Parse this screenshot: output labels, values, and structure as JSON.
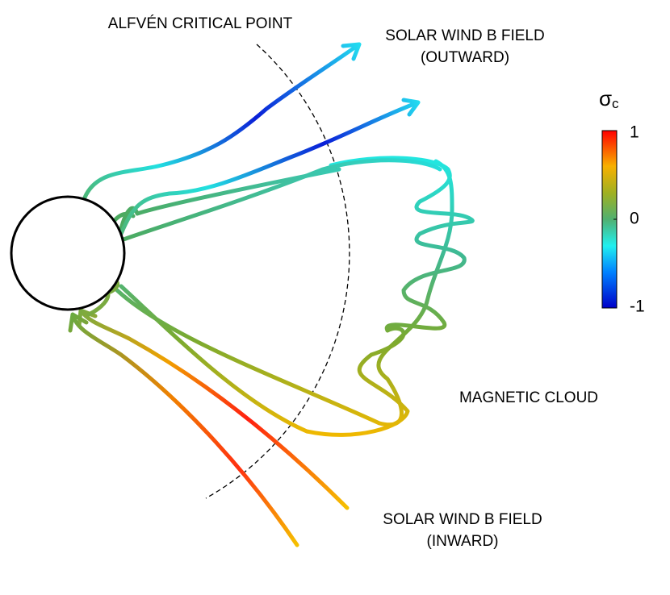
{
  "labels": {
    "alfven": "ALFVÉN CRITICAL POINT",
    "outward": [
      "SOLAR WIND B FIELD",
      "(OUTWARD)"
    ],
    "cloud": "MAGNETIC CLOUD",
    "inward": [
      "SOLAR WIND B FIELD",
      "(INWARD)"
    ]
  },
  "colorbar": {
    "label": "σ",
    "label_sub": "c",
    "lim": [
      -1,
      1
    ],
    "ticks": [
      1,
      0,
      -1
    ]
  }
}
